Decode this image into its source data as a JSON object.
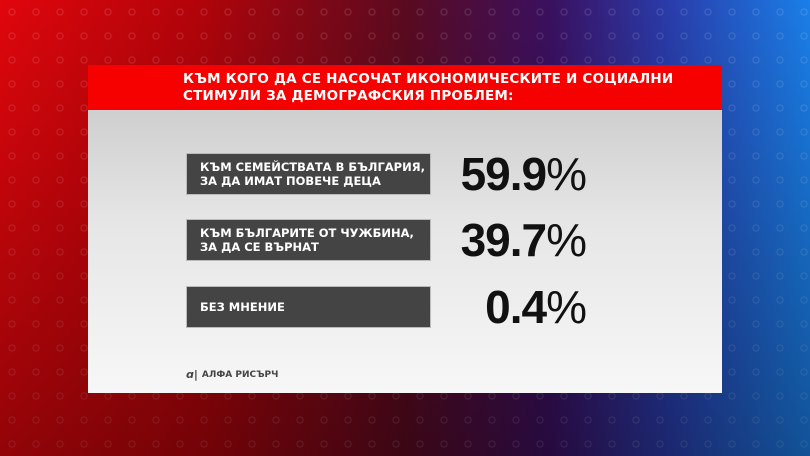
{
  "title": "КЪМ КОГО ДА СЕ НАСОЧАТ ИКОНОМИЧЕСКИТЕ И СОЦИАЛНИ СТИМУЛИ ЗА ДЕМОГРАФСКИЯ ПРОБЛЕМ:",
  "title_lines": [
    "КЪМ КОГО ДА СЕ НАСОЧАТ ИКОНОМИЧЕСКИТЕ И СОЦИАЛНИ",
    "СТИМУЛИ ЗА ДЕМОГРАФСКИЯ ПРОБЛЕМ:"
  ],
  "rows": [
    {
      "label_lines": [
        "КЪМ СЕМЕЙСТВАТА В БЪЛГАРИЯ,",
        "ЗА ДА ИМАТ ПОВЕЧЕ ДЕЦА"
      ],
      "value": "59.9",
      "unit": "%"
    },
    {
      "label_lines": [
        "КЪМ БЪЛГАРИТЕ ОТ ЧУЖБИНА,",
        "ЗА ДА СЕ ВЪРНАТ"
      ],
      "value": "39.7",
      "unit": "%"
    },
    {
      "label_lines": [
        "БЕЗ МНЕНИЕ"
      ],
      "value": "0.4",
      "unit": "%"
    }
  ],
  "source": "АЛФА РИСЪРЧ",
  "colors": {
    "header": "#f60000",
    "label_box": "#444444"
  },
  "chart_data": {
    "type": "table",
    "title": "КЪМ КОГО ДА СЕ НАСОЧАТ ИКОНОМИЧЕСКИТЕ И СОЦИАЛНИ СТИМУЛИ ЗА ДЕМОГРАФСКИЯ ПРОБЛЕМ:",
    "categories": [
      "КЪМ СЕМЕЙСТВАТА В БЪЛГАРИЯ, ЗА ДА ИМАТ ПОВЕЧЕ ДЕЦА",
      "КЪМ БЪЛГАРИТЕ ОТ ЧУЖБИНА, ЗА ДА СЕ ВЪРНАТ",
      "БЕЗ МНЕНИЕ"
    ],
    "values": [
      59.9,
      39.7,
      0.4
    ],
    "unit": "%"
  }
}
